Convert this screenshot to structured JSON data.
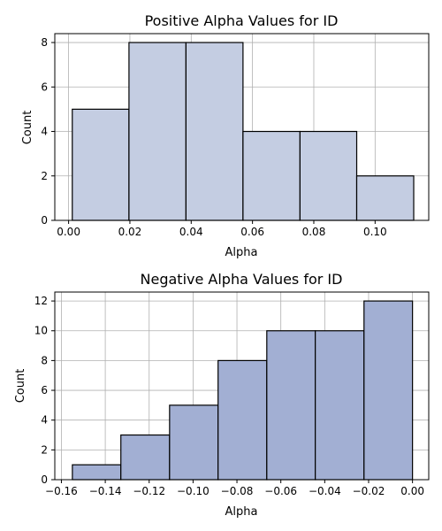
{
  "chart_data": [
    {
      "type": "bar",
      "title": "Positive Alpha Values for ID",
      "xlabel": "Alpha",
      "ylabel": "Count",
      "xlim": [
        -0.0045,
        0.1175
      ],
      "ylim": [
        0,
        8.4
      ],
      "xticks": [
        0.0,
        0.02,
        0.04,
        0.06,
        0.08,
        0.1
      ],
      "xtick_labels": [
        "0.00",
        "0.02",
        "0.04",
        "0.06",
        "0.08",
        "0.10"
      ],
      "yticks": [
        0,
        2,
        4,
        6,
        8
      ],
      "ytick_labels": [
        "0",
        "2",
        "4",
        "6",
        "8"
      ],
      "bins": [
        {
          "x0": 0.0012,
          "x1": 0.0197,
          "count": 5
        },
        {
          "x0": 0.0197,
          "x1": 0.0383,
          "count": 8
        },
        {
          "x0": 0.0383,
          "x1": 0.0569,
          "count": 8
        },
        {
          "x0": 0.0569,
          "x1": 0.0755,
          "count": 4
        },
        {
          "x0": 0.0755,
          "x1": 0.094,
          "count": 4
        },
        {
          "x0": 0.094,
          "x1": 0.1126,
          "count": 2
        }
      ],
      "bar_color": "#c4cde2",
      "edge_color": "#000000",
      "grid": true
    },
    {
      "type": "bar",
      "title": "Negative Alpha Values for ID",
      "xlabel": "Alpha",
      "ylabel": "Count",
      "xlim": [
        -0.163,
        0.0074
      ],
      "ylim": [
        0,
        12.6
      ],
      "xticks": [
        -0.16,
        -0.14,
        -0.12,
        -0.1,
        -0.08,
        -0.06,
        -0.04,
        -0.02,
        0.0
      ],
      "xtick_labels": [
        "−0.16",
        "−0.14",
        "−0.12",
        "−0.10",
        "−0.08",
        "−0.06",
        "−0.04",
        "−0.02",
        "0.00"
      ],
      "yticks": [
        0,
        2,
        4,
        6,
        8,
        10,
        12
      ],
      "ytick_labels": [
        "0",
        "2",
        "4",
        "6",
        "8",
        "10",
        "12"
      ],
      "bins": [
        {
          "x0": -0.155,
          "x1": -0.1329,
          "count": 1
        },
        {
          "x0": -0.1329,
          "x1": -0.1107,
          "count": 3
        },
        {
          "x0": -0.1107,
          "x1": -0.0886,
          "count": 5
        },
        {
          "x0": -0.0886,
          "x1": -0.0664,
          "count": 8
        },
        {
          "x0": -0.0664,
          "x1": -0.0443,
          "count": 10
        },
        {
          "x0": -0.0443,
          "x1": -0.0221,
          "count": 10
        },
        {
          "x0": -0.0221,
          "x1": 0.0,
          "count": 12
        }
      ],
      "bar_color": "#a2afd3",
      "edge_color": "#000000",
      "grid": true
    }
  ]
}
